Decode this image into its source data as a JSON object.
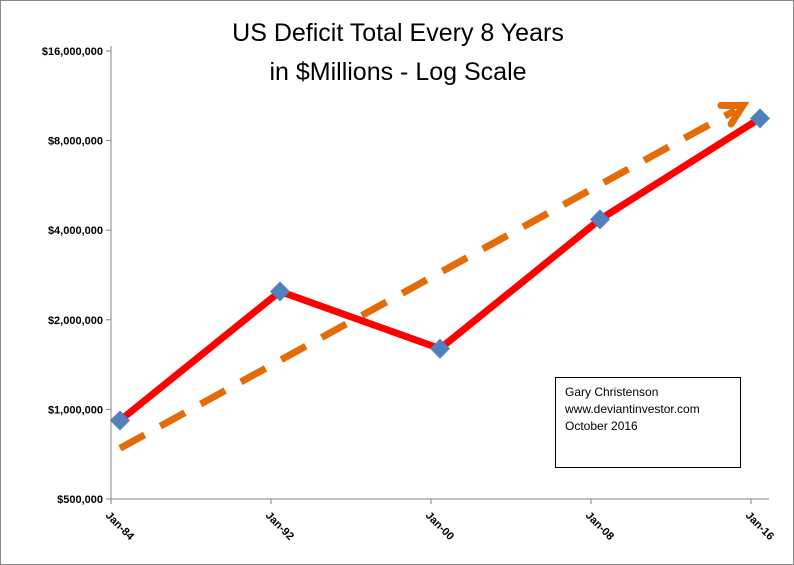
{
  "chart_data": {
    "type": "line",
    "title_lines": [
      "US Deficit Total Every 8 Years",
      "in $Millions - Log Scale"
    ],
    "xlabel": "",
    "ylabel": "",
    "y_scale": "log2",
    "ylim": [
      500000,
      16000000
    ],
    "y_ticks": [
      500000,
      1000000,
      2000000,
      4000000,
      8000000,
      16000000
    ],
    "y_tick_labels": [
      "$500,000",
      "$1,000,000",
      "$2,000,000",
      "$4,000,000",
      "$8,000,000",
      "$16,000,000"
    ],
    "categories": [
      "Jan-84",
      "Jan-92",
      "Jan-00",
      "Jan-08",
      "Jan-16"
    ],
    "series": [
      {
        "values": [
          918000,
          2490000,
          1600000,
          4350000,
          9500000
        ],
        "line_color": "#ff0000",
        "marker_color": "#4f81bd",
        "marker": "diamond"
      }
    ],
    "trend_arrow": {
      "start_value": 740000,
      "end_value": 10500000,
      "color": "#e36c09",
      "style": "dashed"
    },
    "grid": false,
    "legend": "none",
    "annotation": [
      "Gary Christenson",
      "www.deviantinvestor.com",
      "October 2016"
    ]
  }
}
